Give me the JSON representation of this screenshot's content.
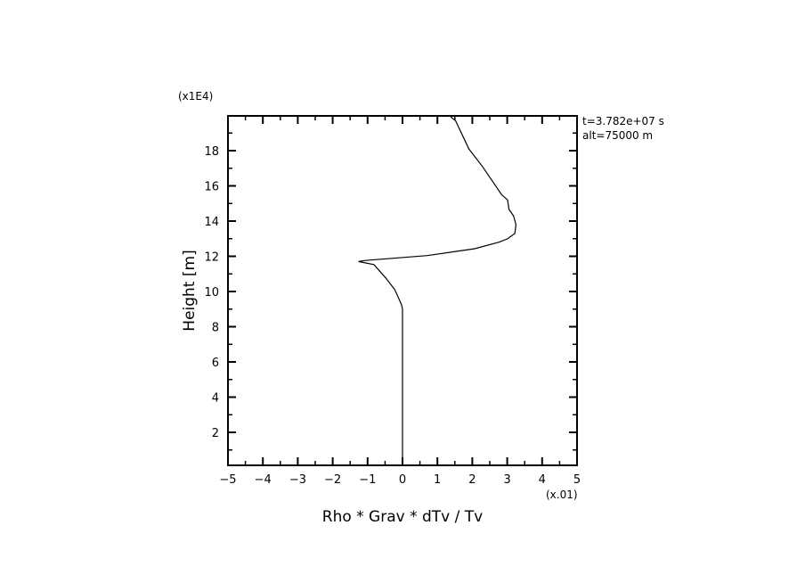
{
  "chart_data": {
    "type": "line",
    "xlabel": "Rho * Grav * dTv / Tv",
    "ylabel": "Height [m]",
    "x_multiplier": "(x.01)",
    "y_multiplier": "(x1E4)",
    "xlim": [
      -5,
      5
    ],
    "ylim": [
      0.1,
      20
    ],
    "xticks": [
      -5,
      -4,
      -3,
      -2,
      -1,
      0,
      1,
      2,
      3,
      4,
      5
    ],
    "yticks": [
      2,
      4,
      6,
      8,
      10,
      12,
      14,
      16,
      18
    ],
    "grid": false,
    "annotations": [
      "t=3.782e+07 s",
      "alt=75000 m"
    ],
    "series": [
      {
        "color": "#000000",
        "x": [
          0,
          0,
          -0.03,
          -0.22,
          -0.48,
          -0.82,
          -1.26,
          -1.07,
          0.71,
          2.07,
          2.76,
          3.01,
          3.22,
          3.25,
          3.18,
          3.05,
          3.01,
          2.84,
          2.29,
          1.9,
          1.52,
          1.38
        ],
        "y": [
          0.1,
          9.0,
          9.26,
          10.1,
          10.77,
          11.53,
          11.7,
          11.76,
          12.04,
          12.43,
          12.8,
          12.99,
          13.3,
          13.8,
          14.3,
          14.66,
          15.2,
          15.5,
          17.1,
          18.1,
          19.7,
          19.92
        ]
      }
    ]
  }
}
